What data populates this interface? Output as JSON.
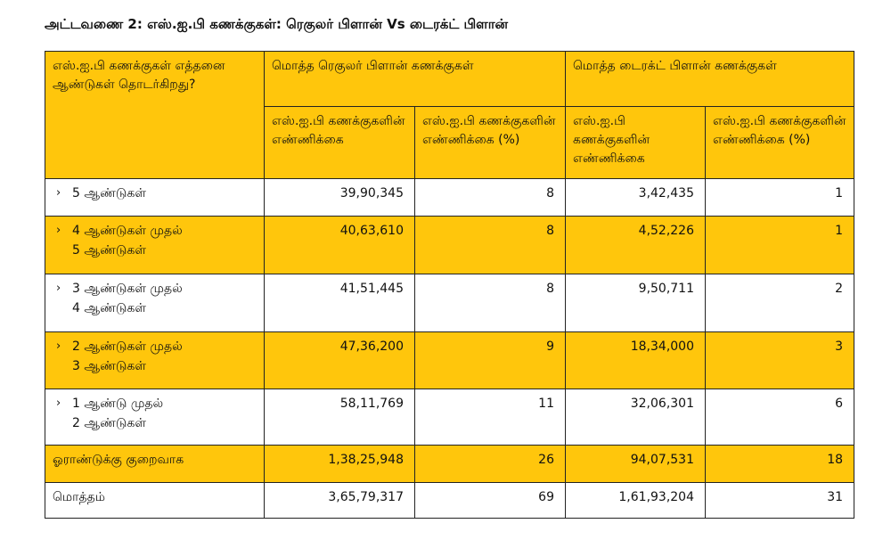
{
  "title": "அட்டவணை 2: எஸ்.ஐ.பி கணக்குகள்: ரெகுலர் பிளான் Vs டைரக்ட் பிளான்",
  "header": {
    "duration": "எஸ்.ஐ.பி கணக்குகள் எத்தனை ஆண்டுகள் தொடர்கிறது?",
    "regular_group": "மொத்த ரெகுலர் பிளான் கணக்குகள்",
    "direct_group": "மொத்த டைரக்ட் பிளான் கணக்குகள்",
    "count_label": "எஸ்.ஐ.பி கணக்குகளின் எண்ணிக்கை",
    "pct_label": "எஸ்.ஐ.பி கணக்குகளின் எண்ணிக்கை (%)"
  },
  "rows": [
    {
      "label": "5 ஆண்டுகள்",
      "regular_count": "39,90,345",
      "regular_pct": "8",
      "direct_count": "3,42,435",
      "direct_pct": "1"
    },
    {
      "label": "4 ஆண்டுகள் முதல்\n5 ஆண்டுகள்",
      "regular_count": "40,63,610",
      "regular_pct": "8",
      "direct_count": "4,52,226",
      "direct_pct": "1"
    },
    {
      "label": "3 ஆண்டுகள் முதல்\n4 ஆண்டுகள்",
      "regular_count": "41,51,445",
      "regular_pct": "8",
      "direct_count": "9,50,711",
      "direct_pct": "2"
    },
    {
      "label": "2 ஆண்டுகள் முதல்\n3 ஆண்டுகள்",
      "regular_count": "47,36,200",
      "regular_pct": "9",
      "direct_count": "18,34,000",
      "direct_pct": "3"
    },
    {
      "label": "1 ஆண்டு முதல்\n2 ஆண்டுகள்",
      "regular_count": "58,11,769",
      "regular_pct": "11",
      "direct_count": "32,06,301",
      "direct_pct": "6"
    },
    {
      "label": "ஓராண்டுக்கு குறைவாக",
      "regular_count": "1,38,25,948",
      "regular_pct": "26",
      "direct_count": "94,07,531",
      "direct_pct": "18"
    }
  ],
  "total": {
    "label": "மொத்தம்",
    "regular_count": "3,65,79,317",
    "regular_pct": "69",
    "direct_count": "1,61,93,204",
    "direct_pct": "31"
  },
  "chevron_symbol": "›",
  "colors": {
    "highlight": "#ffc60c",
    "border": "#222222",
    "background": "#ffffff"
  }
}
